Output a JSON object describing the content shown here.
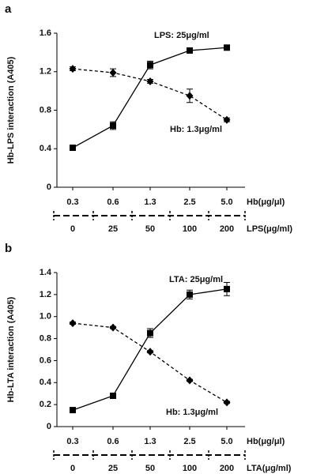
{
  "chart_data": [
    {
      "type": "line",
      "panel": "a",
      "ylabel": "Hb-LPS interaction (A405)",
      "categories": [
        "0.3",
        "0.6",
        "1.3",
        "2.5",
        "5.0"
      ],
      "xlabel": "Hb(μg/μl)",
      "categories2": [
        "0",
        "25",
        "50",
        "100",
        "200"
      ],
      "xlabel2": "LPS(μg/ml)",
      "ylim": [
        0,
        1.6
      ],
      "yticks": [
        0,
        0.4,
        0.8,
        1.2,
        1.6
      ],
      "series": [
        {
          "name": "LPS: 25μg/ml",
          "color": "#000000",
          "marker": "square",
          "dashed": false,
          "values": [
            0.41,
            0.64,
            1.27,
            1.42,
            1.45
          ],
          "errors": [
            0.02,
            0.04,
            0.04,
            0.02,
            0.02
          ]
        },
        {
          "name": "Hb: 1.3μg/ml",
          "color": "#000000",
          "marker": "diamond",
          "dashed": true,
          "values": [
            1.23,
            1.19,
            1.1,
            0.95,
            0.7
          ],
          "errors": [
            0.02,
            0.04,
            0.02,
            0.07,
            0.02
          ]
        }
      ]
    },
    {
      "type": "line",
      "panel": "b",
      "ylabel": "Hb-LTA interaction (A405)",
      "categories": [
        "0.3",
        "0.6",
        "1.3",
        "2.5",
        "5.0"
      ],
      "xlabel": "Hb(μg/μl)",
      "categories2": [
        "0",
        "25",
        "50",
        "100",
        "200"
      ],
      "xlabel2": "LTA(μg/ml)",
      "ylim": [
        0,
        1.4
      ],
      "yticks": [
        0,
        0.2,
        0.4,
        0.6,
        0.8,
        {
          "value": 1,
          "label": "1.0"
        },
        1.2,
        1.4
      ],
      "series": [
        {
          "name": "LTA: 25μg/ml",
          "color": "#000000",
          "marker": "square",
          "dashed": false,
          "values": [
            0.15,
            0.28,
            0.85,
            1.2,
            1.25
          ],
          "errors": [
            0.01,
            0.02,
            0.04,
            0.04,
            0.06
          ]
        },
        {
          "name": "Hb: 1.3μg/ml",
          "color": "#000000",
          "marker": "diamond",
          "dashed": true,
          "values": [
            0.94,
            0.9,
            0.68,
            0.42,
            0.22
          ],
          "errors": [
            0.01,
            0.01,
            0.01,
            0.01,
            0.01
          ]
        }
      ]
    }
  ]
}
